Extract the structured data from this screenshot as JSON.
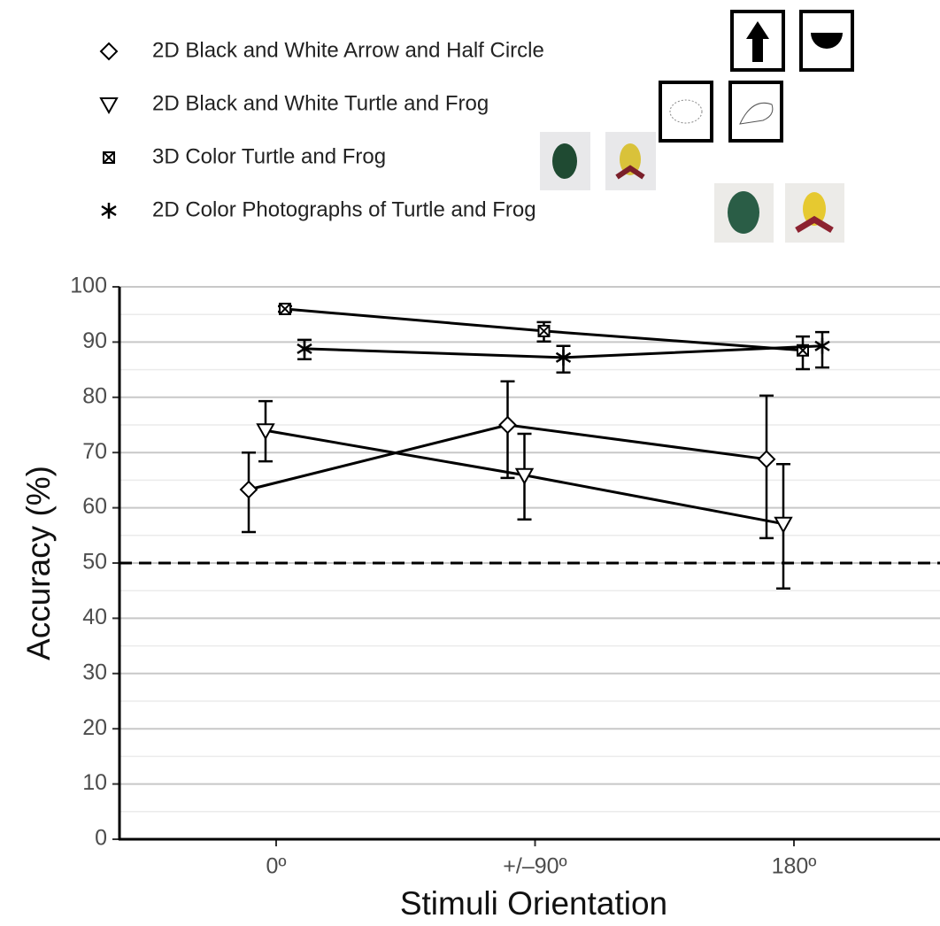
{
  "chart_data": {
    "type": "errorbar-line",
    "categories": [
      "0º",
      "+/–90º",
      "180º"
    ],
    "x_label": "Stimuli Orientation",
    "y_label": "Accuracy (%)",
    "ylim": [
      0,
      100
    ],
    "yticks": [
      0,
      10,
      20,
      30,
      40,
      50,
      60,
      70,
      80,
      90,
      100
    ],
    "grid": true,
    "reference_line": 50,
    "series": [
      {
        "name": "2D Black and White Arrow and Half Circle",
        "marker": "diamond",
        "color": "#000000",
        "values": [
          63.3,
          75.0,
          68.8
        ],
        "lower": [
          55.6,
          65.4,
          54.5
        ],
        "upper": [
          70.0,
          82.9,
          80.3
        ]
      },
      {
        "name": "2D Black and White Turtle and Frog",
        "marker": "triangle-down",
        "color": "#000000",
        "values": [
          74.0,
          65.9,
          57.1
        ],
        "lower": [
          68.4,
          57.9,
          45.4
        ],
        "upper": [
          79.3,
          73.4,
          67.9
        ]
      },
      {
        "name": "3D Color Turtle and Frog",
        "marker": "square-x",
        "color": "#000000",
        "values": [
          96.0,
          92.0,
          88.5
        ],
        "lower": [
          95.5,
          90.1,
          85.1
        ],
        "upper": [
          96.5,
          93.6,
          91.0
        ]
      },
      {
        "name": "2D Color Photographs of Turtle and Frog",
        "marker": "asterisk",
        "color": "#000000",
        "values": [
          88.8,
          87.2,
          89.3
        ],
        "lower": [
          86.9,
          84.5,
          85.4
        ],
        "upper": [
          90.4,
          89.3,
          91.8
        ]
      }
    ]
  }
}
